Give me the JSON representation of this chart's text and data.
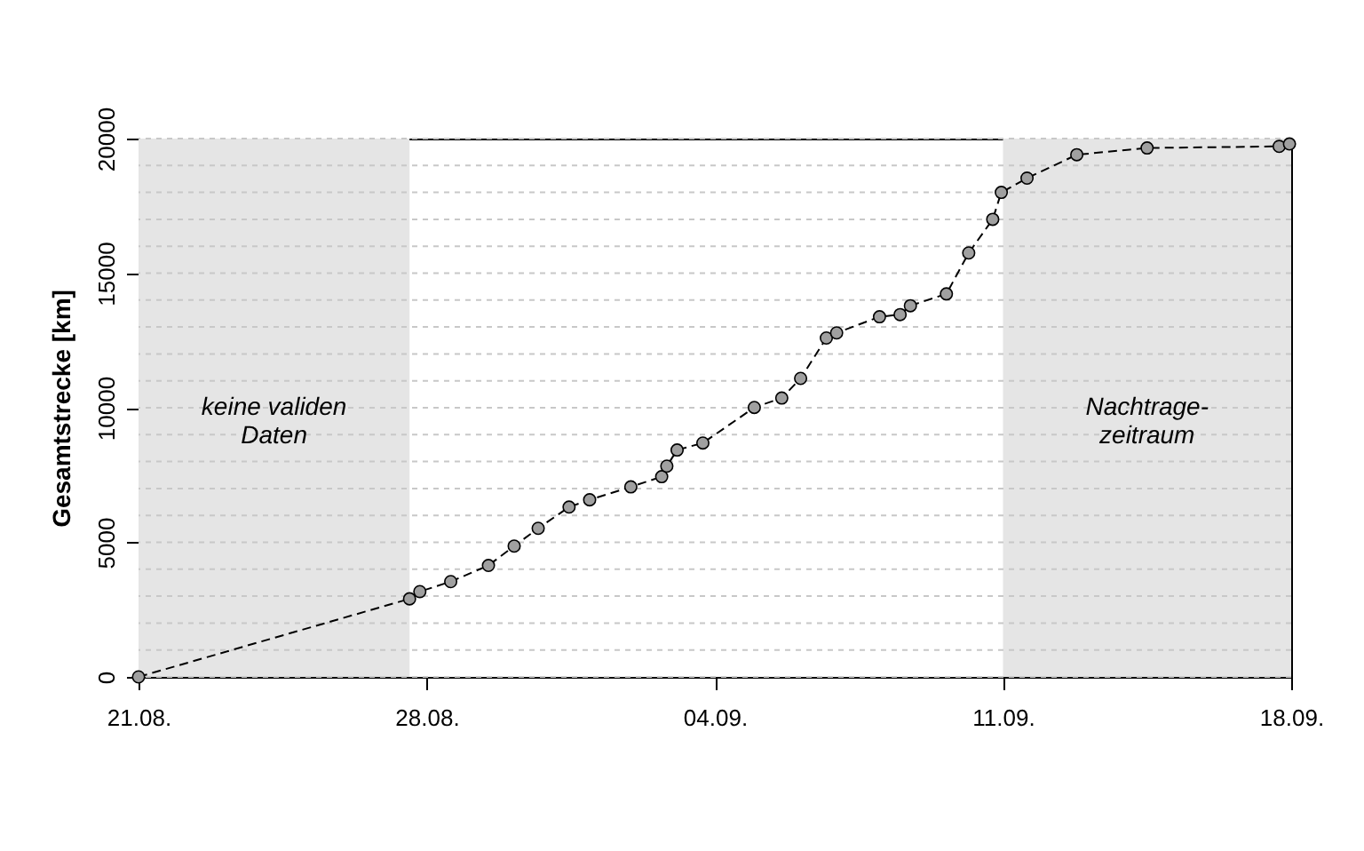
{
  "chart_data": {
    "type": "line",
    "ylabel": "Gesamtstrecke [km]",
    "xlim": [
      "--08-21",
      "--09-18"
    ],
    "xticks": [
      {
        "value": "--08-21",
        "label": "21.08."
      },
      {
        "value": "--08-28",
        "label": "28.08."
      },
      {
        "value": "--09-04",
        "label": "04.09."
      },
      {
        "value": "--09-11",
        "label": "11.09."
      },
      {
        "value": "--09-18",
        "label": "18.09."
      }
    ],
    "ylim": [
      0,
      20000
    ],
    "yticks": [
      0,
      {
        "value": 1000,
        "label": null
      },
      {
        "value": 2000,
        "label": null
      },
      {
        "value": 3000,
        "label": null
      },
      {
        "value": 4000,
        "label": null
      },
      5000,
      {
        "value": 6000,
        "label": null
      },
      {
        "value": 7000,
        "label": null
      },
      {
        "value": 8000,
        "label": null
      },
      {
        "value": 9000,
        "label": null
      },
      10000,
      {
        "value": 11000,
        "label": null
      },
      {
        "value": 12000,
        "label": null
      },
      {
        "value": 13000,
        "label": null
      },
      {
        "value": 14000,
        "label": null
      },
      15000,
      {
        "value": 16000,
        "label": null
      },
      {
        "value": 17000,
        "label": null
      },
      {
        "value": 18000,
        "label": null
      },
      {
        "value": 19000,
        "label": null
      },
      20000
    ],
    "grid": "y",
    "marker": "circle",
    "line_style": "dashed",
    "bands": [
      {
        "axis": "x",
        "from": "--08-21",
        "to": "--08-27T14:00",
        "label": "keine validen\nDaten",
        "color": "#e5e5e5"
      },
      {
        "axis": "x",
        "from": "--09-11",
        "to": "--09-18",
        "label": "Nachtrage-\nzeitraum",
        "color": "#e5e5e5"
      }
    ],
    "series": [
      {
        "color": "#a0a0a0",
        "x": [
          "--08-21T00:00",
          "--08-27T14:00",
          "--08-27T20:00",
          "--08-28T14:00",
          "--08-29T12:00",
          "--08-30T03:00",
          "--08-30T17:00",
          "--08-31T11:00",
          "--08-31T23:00",
          "--09-01T23:00",
          "--09-02T17:00",
          "--09-02T20:00",
          "--09-03T02:00",
          "--09-03T17:00",
          "--09-04T23:00",
          "--09-05T15:00",
          "--09-06T02:00",
          "--09-06T17:00",
          "--09-06T23:00",
          "--09-08T00:00",
          "--09-08T12:00",
          "--09-08T18:00",
          "--09-09T15:00",
          "--09-10T04:00",
          "--09-10T18:00",
          "--09-10T23:00",
          "--09-11T14:00",
          "--09-12T19:00",
          "--09-14T12:00",
          "--09-17T17:00",
          "--09-17T23:00"
        ],
        "values": [
          0,
          2900,
          3170,
          3540,
          4140,
          4860,
          5520,
          6310,
          6580,
          7060,
          7440,
          7830,
          8430,
          8690,
          10010,
          10360,
          11090,
          12590,
          12780,
          13380,
          13460,
          13790,
          14230,
          15750,
          17000,
          18000,
          18530,
          19400,
          19650,
          19710,
          19800
        ]
      }
    ]
  }
}
